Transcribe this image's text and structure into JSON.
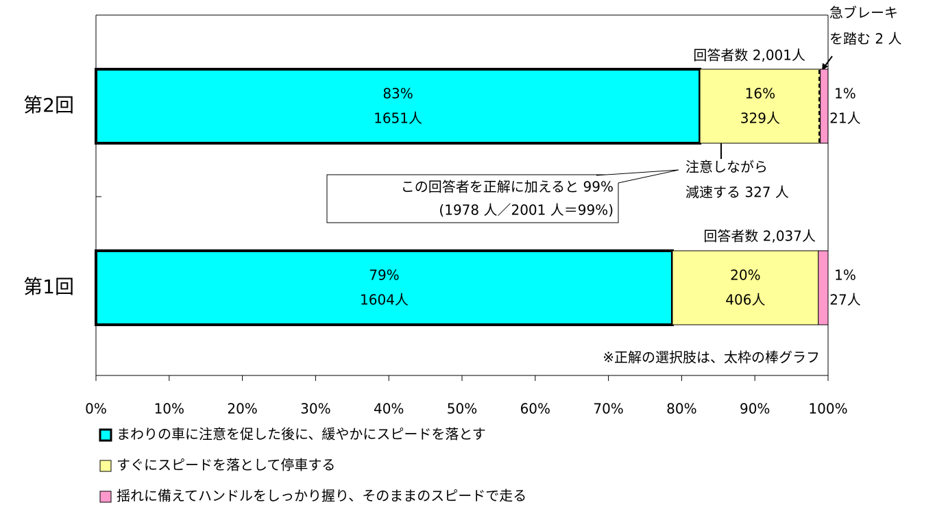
{
  "chart_data": {
    "type": "stacked_bar_h",
    "categories": [
      "第2回",
      "第1回"
    ],
    "series": [
      {
        "name": "まわりの車に注意を促した後に、緩やかにスピードを落とす",
        "color": "#00ffff",
        "bold_border": true,
        "values": [
          82.5,
          78.74
        ],
        "value_labels": [
          "83%",
          "79%"
        ],
        "count_labels": [
          "1651人",
          "1604人"
        ]
      },
      {
        "name": "すぐにスピードを落として停車する",
        "color": "#ffff99",
        "values": [
          16.44,
          19.93
        ],
        "value_labels": [
          "16%",
          "20%"
        ],
        "count_labels": [
          "329人",
          "406人"
        ]
      },
      {
        "name": "揺れに備えてハンドルをしっかり握り、そのままのスピードで走る",
        "color": "#ff99cc",
        "values": [
          1.05,
          1.33
        ],
        "value_labels": [
          "1%",
          "1%"
        ],
        "count_labels": [
          "21人",
          "27人"
        ]
      }
    ],
    "respondents": [
      "回答者数 2,001人",
      "回答者数 2,037人"
    ],
    "annotations": {
      "brake": [
        "急ブレーキ",
        "を踏む 2 人"
      ],
      "slow": [
        "注意しながら",
        "減速する 327 人"
      ],
      "callout": [
        "この回答者を正解に加えると 99%",
        "(1978 人／2001 人＝99%)"
      ],
      "note": "※正解の選択肢は、太枠の棒グラフ"
    },
    "xlim": [
      0,
      100
    ],
    "xticks": [
      {
        "value": 0,
        "label": "0%"
      },
      {
        "value": 10,
        "label": "10%"
      },
      {
        "value": 20,
        "label": "20%"
      },
      {
        "value": 30,
        "label": "30%"
      },
      {
        "value": 40,
        "label": "40%"
      },
      {
        "value": 50,
        "label": "50%"
      },
      {
        "value": 60,
        "label": "60%"
      },
      {
        "value": 70,
        "label": "70%"
      },
      {
        "value": 80,
        "label": "80%"
      },
      {
        "value": 90,
        "label": "90%"
      },
      {
        "value": 100,
        "label": "100%"
      }
    ]
  }
}
